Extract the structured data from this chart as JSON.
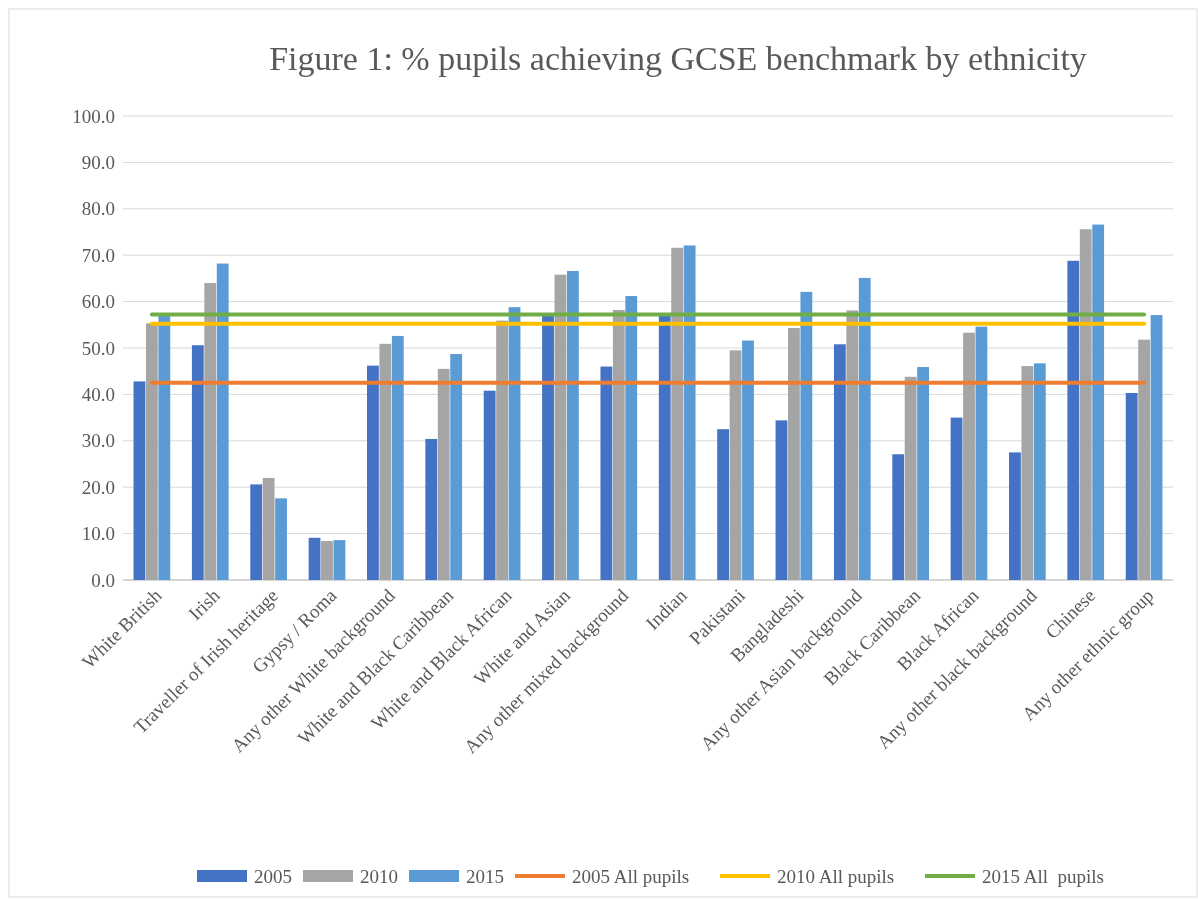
{
  "chart_data": {
    "type": "bar",
    "title": "Figure 1: % pupils achieving GCSE benchmark by ethnicity",
    "categories": [
      "White British",
      "Irish",
      "Traveller of Irish heritage",
      "Gypsy / Roma",
      "Any other White background",
      "White and Black Caribbean",
      "White and Black African",
      "White and Asian",
      "Any other mixed background",
      "Indian",
      "Pakistani",
      "Bangladeshi",
      "Any other Asian background",
      "Black Caribbean",
      "Black African",
      "Any other black background",
      "Chinese",
      "Any other ethnic group"
    ],
    "series": [
      {
        "name": "2005",
        "color": "#4472c4",
        "values": [
          42.8,
          50.6,
          20.6,
          9.1,
          46.2,
          30.4,
          40.8,
          57.3,
          46.0,
          57.5,
          32.5,
          34.4,
          50.8,
          27.1,
          35.0,
          27.5,
          68.8,
          40.3
        ]
      },
      {
        "name": "2010",
        "color": "#a5a5a5",
        "values": [
          55.3,
          64.0,
          22.0,
          8.4,
          50.9,
          45.5,
          55.9,
          65.8,
          58.2,
          71.6,
          49.5,
          54.3,
          58.1,
          43.8,
          53.3,
          46.1,
          75.6,
          51.8
        ]
      },
      {
        "name": "2015",
        "color": "#5b9bd5",
        "values": [
          57.0,
          68.2,
          17.6,
          8.6,
          52.6,
          48.7,
          58.8,
          66.6,
          61.2,
          72.1,
          51.6,
          62.1,
          65.1,
          45.9,
          54.6,
          46.7,
          76.6,
          57.1
        ]
      },
      {
        "name": "2005 All pupils",
        "type": "line",
        "color": "#ed7d31",
        "values": [
          42.5,
          42.5,
          42.5,
          42.5,
          42.5,
          42.5,
          42.5,
          42.5,
          42.5,
          42.5,
          42.5,
          42.5,
          42.5,
          42.5,
          42.5,
          42.5,
          42.5,
          42.5
        ]
      },
      {
        "name": "2010 All pupils",
        "type": "line",
        "color": "#ffc000",
        "values": [
          55.2,
          55.2,
          55.2,
          55.2,
          55.2,
          55.2,
          55.2,
          55.2,
          55.2,
          55.2,
          55.2,
          55.2,
          55.2,
          55.2,
          55.2,
          55.2,
          55.2,
          55.2
        ]
      },
      {
        "name": "2015 All  pupils",
        "type": "line",
        "color": "#70ad47",
        "values": [
          57.2,
          57.2,
          57.2,
          57.2,
          57.2,
          57.2,
          57.2,
          57.2,
          57.2,
          57.2,
          57.2,
          57.2,
          57.2,
          57.2,
          57.2,
          57.2,
          57.2,
          57.2
        ]
      }
    ],
    "ylim": [
      0,
      100
    ],
    "yticks": [
      {
        "value": 0,
        "label": "0.0"
      },
      {
        "value": 10,
        "label": "10.0"
      },
      {
        "value": 20,
        "label": "20.0"
      },
      {
        "value": 30,
        "label": "30.0"
      },
      {
        "value": 40,
        "label": "40.0"
      },
      {
        "value": 50,
        "label": "50.0"
      },
      {
        "value": 60,
        "label": "60.0"
      },
      {
        "value": 70,
        "label": "70.0"
      },
      {
        "value": 80,
        "label": "80.0"
      },
      {
        "value": 90,
        "label": "90.0"
      },
      {
        "value": 100,
        "label": "100.0"
      }
    ],
    "grid": "y",
    "legend": "bottom"
  }
}
